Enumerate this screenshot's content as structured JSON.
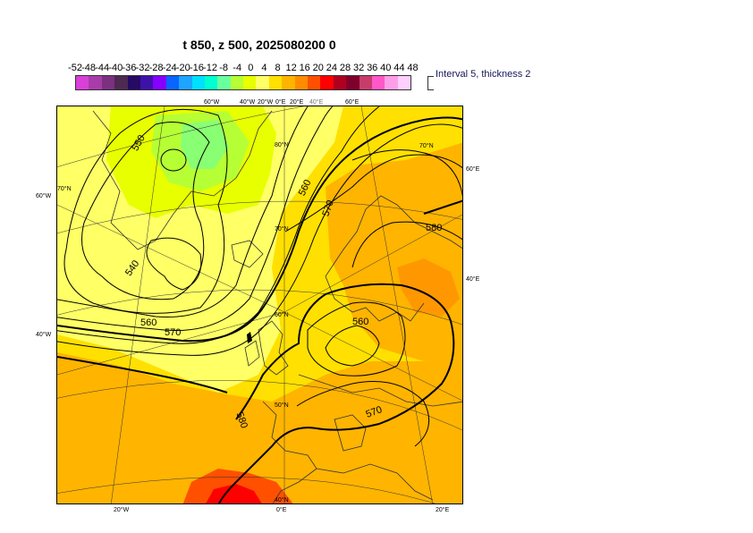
{
  "title": "t 850, z 500, 2025080200 0",
  "legend": {
    "labels": [
      "-52",
      "-48",
      "-44",
      "-40",
      "-36",
      "-32",
      "-28",
      "-24",
      "-20",
      "-16",
      "-12",
      "-8",
      "-4",
      "0",
      "4",
      "8",
      "12",
      "16",
      "20",
      "24",
      "28",
      "32",
      "36",
      "40",
      "44",
      "48"
    ],
    "colors": [
      "#d840d8",
      "#a83ca8",
      "#7c3080",
      "#4c2a52",
      "#260a66",
      "#3e12a8",
      "#8600ff",
      "#0a64ff",
      "#1ea5ff",
      "#00e0ff",
      "#00ffd0",
      "#6aff9e",
      "#b6ff34",
      "#e8ff00",
      "#ffff66",
      "#ffe000",
      "#ffb400",
      "#ff8c00",
      "#ff5000",
      "#ff0000",
      "#b00020",
      "#80002c",
      "#c83c6c",
      "#ff58c8",
      "#ff9ee8",
      "#ffd0ff"
    ],
    "note": "Interval 5, thickness 2"
  },
  "map": {
    "top_labels": [
      "60°W",
      "40°W",
      "20°W",
      "0°E",
      "20°E",
      "40°E",
      "60°E"
    ],
    "bottom_labels": [
      "20°W",
      "0°E",
      "20°E"
    ],
    "left_labels": [
      "60°W",
      "40°W"
    ],
    "right_labels": [
      "60°E",
      "40°E"
    ],
    "lat_labels": [
      "80°N",
      "70°N",
      "60°N",
      "50°N",
      "40°N",
      "70°N",
      "70°N"
    ],
    "contours": [
      {
        "label": "550"
      },
      {
        "label": "540"
      },
      {
        "label": "560"
      },
      {
        "label": "570"
      },
      {
        "label": "560"
      },
      {
        "label": "570"
      },
      {
        "label": "580"
      },
      {
        "label": "560"
      },
      {
        "label": "570"
      },
      {
        "label": "580"
      }
    ]
  }
}
